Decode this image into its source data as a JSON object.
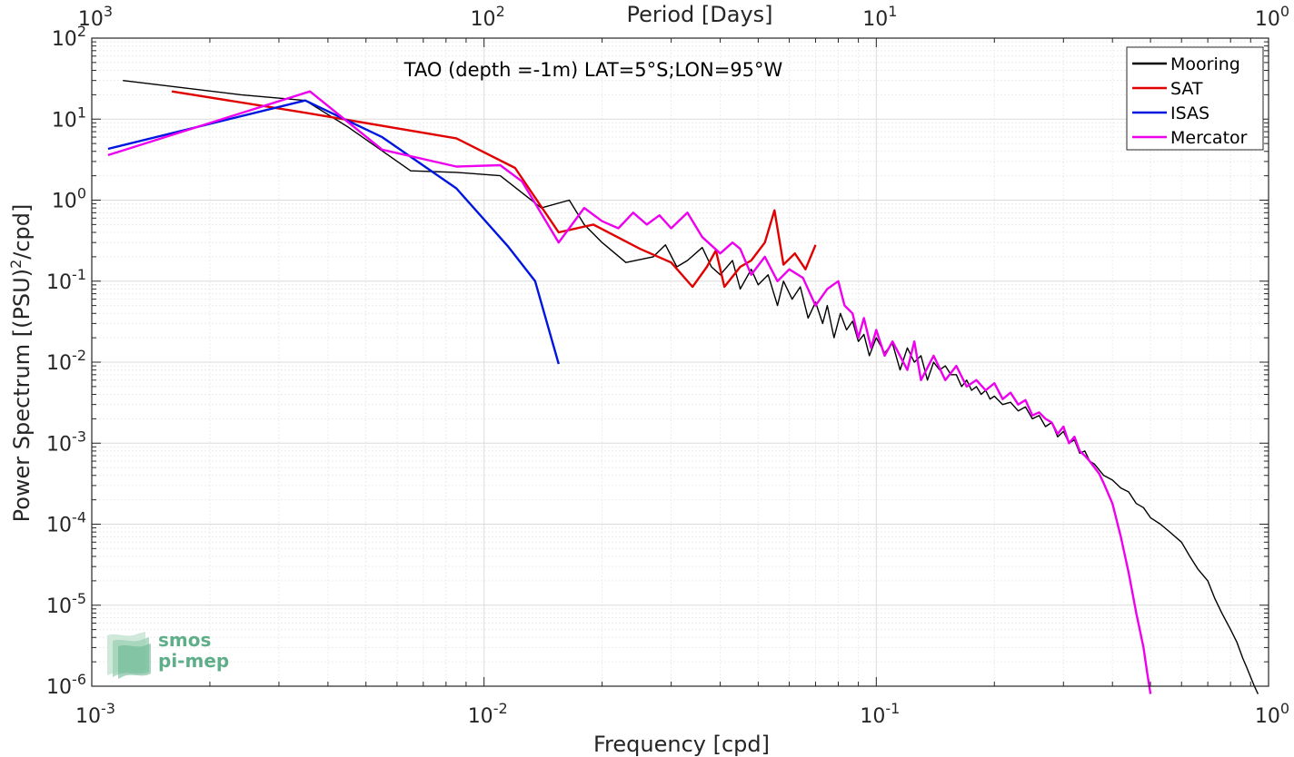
{
  "chart_data": {
    "type": "line",
    "title": "TAO (depth =-1m) LAT=5°S;LON=95°W",
    "xlabel": "Frequency [cpd]",
    "ylabel": "Power Spectrum [(PSU)",
    "ylabel_sup": "2",
    "ylabel_tail": "/cpd]",
    "top_axis_label": "Period [Days]",
    "x_scale": "log",
    "y_scale": "log",
    "xlim": [
      0.001,
      1
    ],
    "ylim": [
      1e-06,
      100
    ],
    "grid": true,
    "legend_position": "top-right",
    "x_ticks": [
      {
        "base": "10",
        "exp": "-3"
      },
      {
        "base": "10",
        "exp": "-2"
      },
      {
        "base": "10",
        "exp": "-1"
      },
      {
        "base": "10",
        "exp": "0"
      }
    ],
    "top_ticks": [
      {
        "base": "10",
        "exp": "3"
      },
      {
        "base": "10",
        "exp": "2"
      },
      {
        "base": "10",
        "exp": "1"
      },
      {
        "base": "10",
        "exp": "0"
      }
    ],
    "y_ticks": [
      {
        "base": "10",
        "exp": "-6"
      },
      {
        "base": "10",
        "exp": "-5"
      },
      {
        "base": "10",
        "exp": "-4"
      },
      {
        "base": "10",
        "exp": "-3"
      },
      {
        "base": "10",
        "exp": "-2"
      },
      {
        "base": "10",
        "exp": "-1"
      },
      {
        "base": "10",
        "exp": "0"
      },
      {
        "base": "10",
        "exp": "1"
      },
      {
        "base": "10",
        "exp": "2"
      }
    ],
    "series": [
      {
        "name": "Mooring",
        "color": "#000000",
        "x": [
          0.0012,
          0.0024,
          0.0035,
          0.0045,
          0.0065,
          0.0085,
          0.011,
          0.014,
          0.0165,
          0.018,
          0.02,
          0.023,
          0.027,
          0.029,
          0.031,
          0.033,
          0.036,
          0.038,
          0.04,
          0.043,
          0.045,
          0.048,
          0.05,
          0.053,
          0.056,
          0.058,
          0.061,
          0.064,
          0.067,
          0.07,
          0.073,
          0.075,
          0.078,
          0.081,
          0.084,
          0.087,
          0.09,
          0.093,
          0.096,
          0.1,
          0.105,
          0.11,
          0.115,
          0.12,
          0.125,
          0.13,
          0.135,
          0.14,
          0.145,
          0.15,
          0.155,
          0.16,
          0.165,
          0.17,
          0.175,
          0.18,
          0.185,
          0.19,
          0.195,
          0.2,
          0.21,
          0.22,
          0.23,
          0.24,
          0.25,
          0.26,
          0.27,
          0.28,
          0.29,
          0.3,
          0.31,
          0.32,
          0.33,
          0.34,
          0.35,
          0.36,
          0.38,
          0.4,
          0.42,
          0.44,
          0.46,
          0.48,
          0.5,
          0.53,
          0.56,
          0.6,
          0.63,
          0.66,
          0.7,
          0.73,
          0.76,
          0.8,
          0.83,
          0.86,
          0.88,
          0.9,
          0.92,
          0.94
        ],
        "values": [
          30,
          20,
          17,
          8,
          2.3,
          2.2,
          2.0,
          0.8,
          1.0,
          0.5,
          0.3,
          0.17,
          0.2,
          0.28,
          0.15,
          0.18,
          0.26,
          0.15,
          0.12,
          0.18,
          0.08,
          0.14,
          0.09,
          0.12,
          0.05,
          0.1,
          0.06,
          0.085,
          0.035,
          0.055,
          0.03,
          0.05,
          0.02,
          0.04,
          0.025,
          0.032,
          0.018,
          0.022,
          0.012,
          0.02,
          0.013,
          0.017,
          0.008,
          0.015,
          0.01,
          0.012,
          0.006,
          0.01,
          0.008,
          0.009,
          0.007,
          0.007,
          0.005,
          0.006,
          0.0045,
          0.005,
          0.004,
          0.0045,
          0.0035,
          0.0038,
          0.003,
          0.0032,
          0.0025,
          0.0028,
          0.002,
          0.0022,
          0.0016,
          0.0018,
          0.0012,
          0.0014,
          0.001,
          0.0011,
          0.00075,
          0.0008,
          0.0006,
          0.00055,
          0.0004,
          0.00035,
          0.00028,
          0.00025,
          0.00018,
          0.00016,
          0.00012,
          0.0001,
          8e-05,
          6e-05,
          4e-05,
          2.8e-05,
          2e-05,
          1.2e-05,
          8e-06,
          5e-06,
          3.5e-06,
          2.2e-06,
          1.7e-06,
          1.3e-06,
          1e-06,
          8e-07
        ]
      },
      {
        "name": "SAT",
        "color": "#e10000",
        "x": [
          0.0016,
          0.0035,
          0.0085,
          0.012,
          0.0155,
          0.019,
          0.025,
          0.03,
          0.034,
          0.037,
          0.039,
          0.041,
          0.045,
          0.048,
          0.052,
          0.055,
          0.058,
          0.062,
          0.066,
          0.07
        ],
        "values": [
          22,
          12,
          5.8,
          2.5,
          0.4,
          0.5,
          0.25,
          0.17,
          0.085,
          0.15,
          0.24,
          0.085,
          0.15,
          0.18,
          0.3,
          0.75,
          0.16,
          0.22,
          0.14,
          0.28
        ]
      },
      {
        "name": "ISAS",
        "color": "#0016e0",
        "x": [
          0.0011,
          0.0035,
          0.0055,
          0.0085,
          0.0115,
          0.0135,
          0.0155
        ],
        "values": [
          4.3,
          17,
          6,
          1.4,
          0.27,
          0.1,
          0.0095
        ]
      },
      {
        "name": "Mercator",
        "color": "#ee00ee",
        "x": [
          0.0011,
          0.0036,
          0.0055,
          0.0085,
          0.011,
          0.0125,
          0.0155,
          0.018,
          0.02,
          0.022,
          0.024,
          0.026,
          0.028,
          0.03,
          0.033,
          0.036,
          0.04,
          0.043,
          0.045,
          0.048,
          0.052,
          0.056,
          0.06,
          0.065,
          0.07,
          0.075,
          0.08,
          0.083,
          0.087,
          0.09,
          0.093,
          0.097,
          0.1,
          0.105,
          0.11,
          0.12,
          0.125,
          0.13,
          0.14,
          0.15,
          0.16,
          0.17,
          0.18,
          0.19,
          0.2,
          0.21,
          0.22,
          0.23,
          0.24,
          0.25,
          0.26,
          0.27,
          0.28,
          0.29,
          0.3,
          0.31,
          0.32,
          0.33,
          0.34,
          0.35,
          0.36,
          0.37,
          0.38,
          0.4,
          0.42,
          0.44,
          0.46,
          0.48,
          0.49,
          0.5
        ],
        "values": [
          3.6,
          22,
          4.2,
          2.6,
          2.7,
          1.7,
          0.3,
          0.8,
          0.55,
          0.45,
          0.7,
          0.5,
          0.65,
          0.45,
          0.7,
          0.35,
          0.22,
          0.3,
          0.25,
          0.12,
          0.2,
          0.1,
          0.14,
          0.11,
          0.05,
          0.08,
          0.1,
          0.05,
          0.04,
          0.02,
          0.035,
          0.015,
          0.025,
          0.012,
          0.018,
          0.008,
          0.018,
          0.006,
          0.012,
          0.006,
          0.009,
          0.005,
          0.006,
          0.0045,
          0.0055,
          0.0035,
          0.0042,
          0.003,
          0.0034,
          0.0022,
          0.0024,
          0.002,
          0.0018,
          0.0013,
          0.0016,
          0.001,
          0.0012,
          0.0008,
          0.0007,
          0.0006,
          0.0005,
          0.00042,
          0.00032,
          0.00018,
          7e-05,
          2.5e-05,
          8e-06,
          3e-06,
          1.5e-06,
          8e-07
        ]
      }
    ]
  },
  "logo": {
    "line1": "smos",
    "line2": "pi-mep",
    "color": "#5fae8a"
  }
}
